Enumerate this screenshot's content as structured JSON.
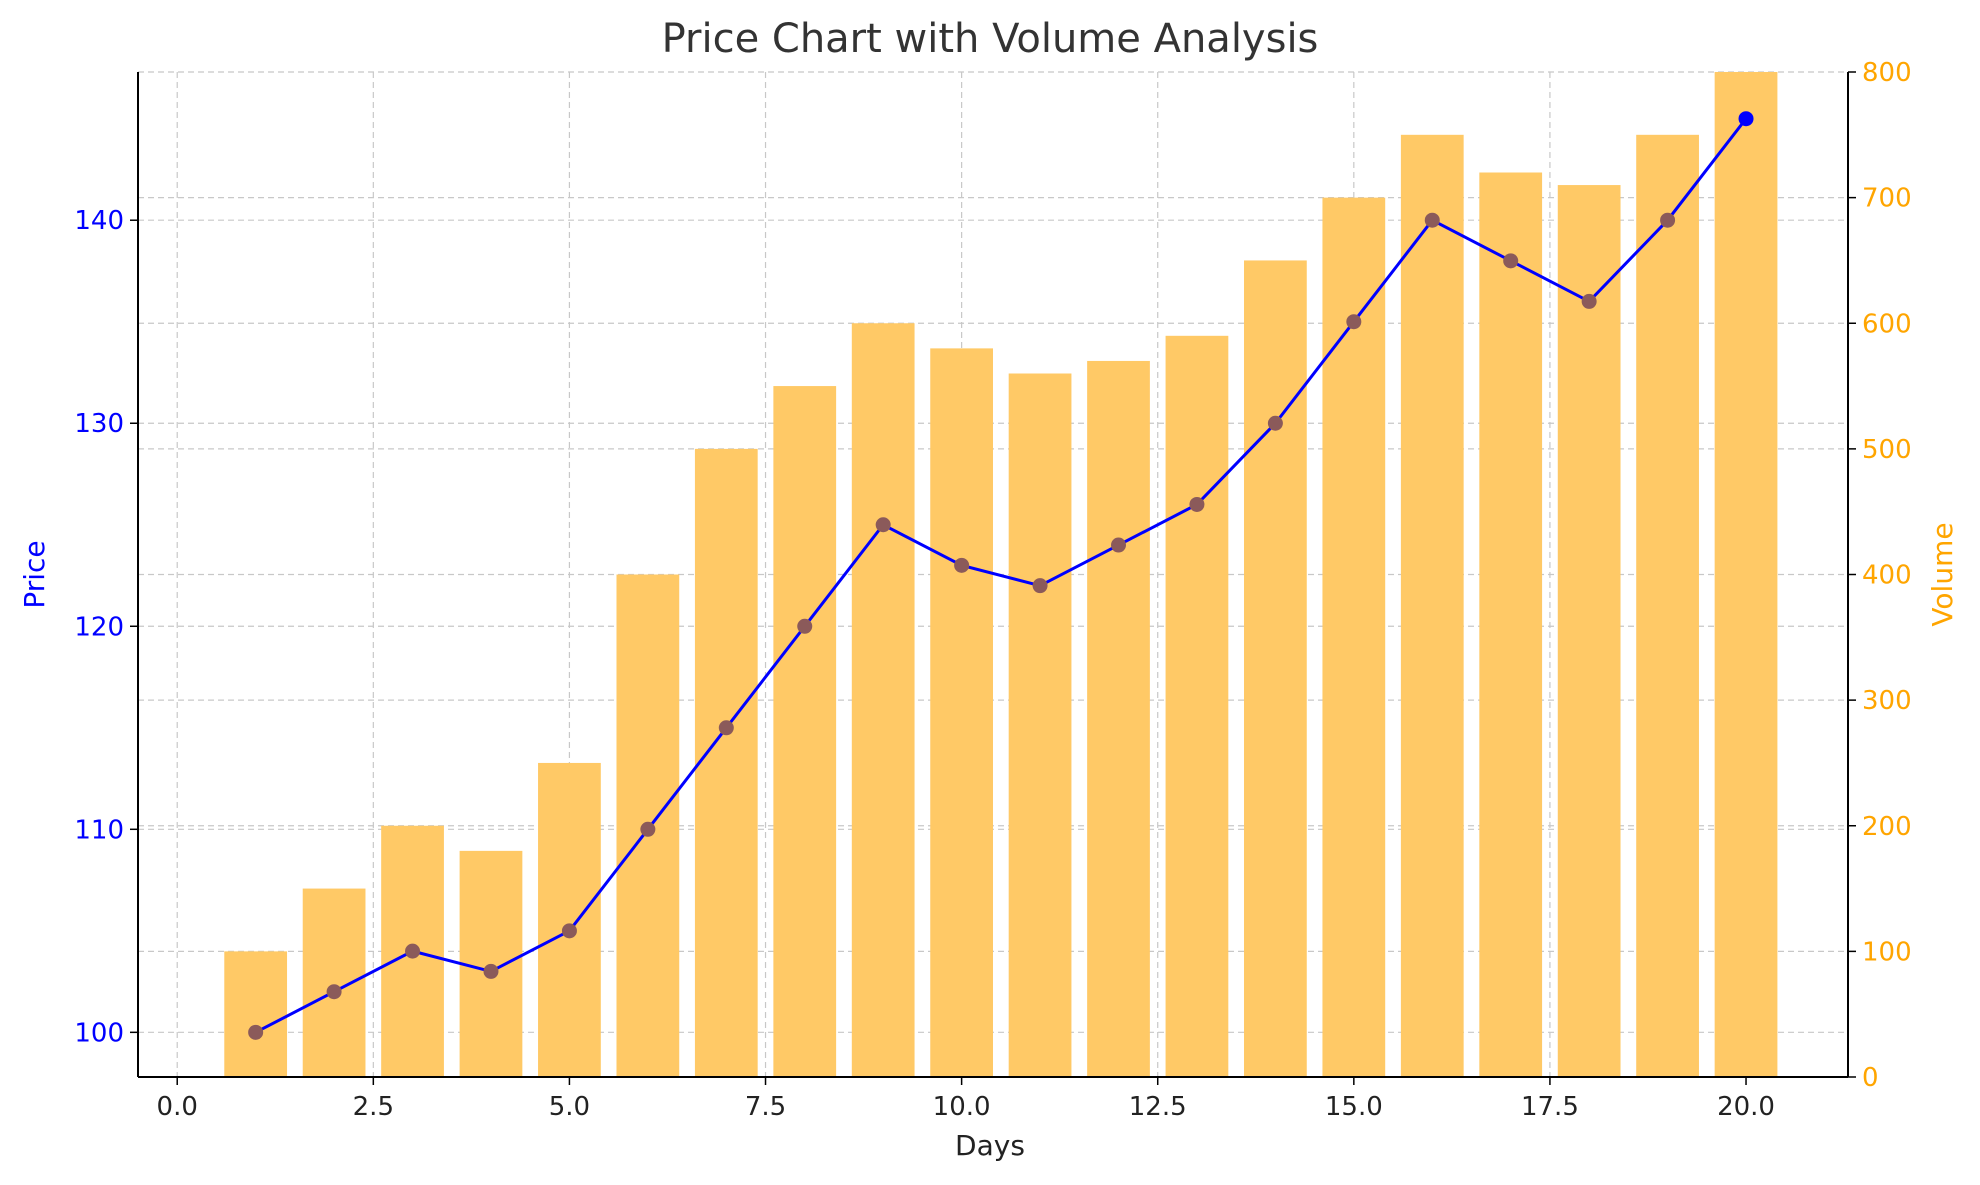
{
  "chart_data": {
    "type": "bar+line",
    "title": "Price Chart with Volume Analysis",
    "xlabel": "Days",
    "ylabel": "Price",
    "y2label": "Volume",
    "xlim": [
      -0.5,
      21.3
    ],
    "ylim": [
      97.8,
      147.3
    ],
    "y2lim": [
      0,
      800
    ],
    "x_ticks": [
      "0.0",
      "2.5",
      "5.0",
      "7.5",
      "10.0",
      "12.5",
      "15.0",
      "17.5",
      "20.0"
    ],
    "y_ticks": [
      "100",
      "110",
      "120",
      "130",
      "140"
    ],
    "y2_ticks": [
      "0",
      "100",
      "200",
      "300",
      "400",
      "500",
      "600",
      "700",
      "800"
    ],
    "x": [
      1,
      2,
      3,
      4,
      5,
      6,
      7,
      8,
      9,
      10,
      11,
      12,
      13,
      14,
      15,
      16,
      17,
      18,
      19,
      20
    ],
    "series": [
      {
        "type": "bar",
        "axis": "right",
        "values": [
          100,
          150,
          200,
          180,
          250,
          400,
          500,
          550,
          600,
          580,
          560,
          570,
          590,
          650,
          700,
          750,
          720,
          710,
          750,
          800
        ]
      },
      {
        "type": "line",
        "axis": "left",
        "values": [
          100,
          102,
          104,
          103,
          105,
          110,
          115,
          120,
          125,
          123,
          122,
          124,
          126,
          130,
          135,
          140,
          138,
          136,
          140,
          145
        ]
      }
    ],
    "grid": true,
    "colors": {
      "bar": "#ffc966",
      "line": "#0000ff",
      "marker": "#8b5a5a",
      "left_axis": "#0000ff",
      "right_axis": "#ffa500",
      "grid": "#c8c8c8"
    }
  }
}
